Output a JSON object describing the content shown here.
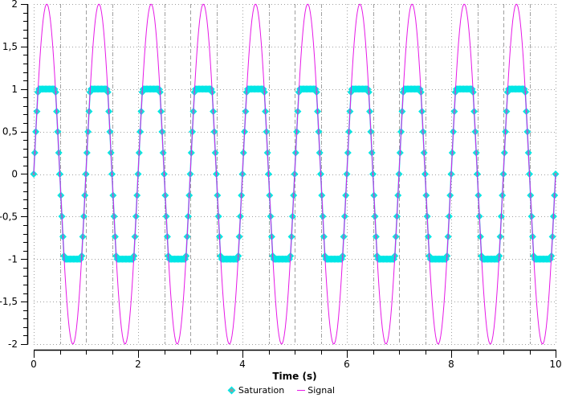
{
  "chart_data": {
    "type": "line",
    "title": "",
    "xlabel": "Time (s)",
    "ylabel": "",
    "xlim": [
      0,
      10
    ],
    "ylim": [
      -2,
      2
    ],
    "grid": true,
    "legend_position": "bottom",
    "x_ticks": [
      0,
      2,
      4,
      6,
      8,
      10
    ],
    "x_tick_labels": [
      "0",
      "2",
      "4",
      "6",
      "8",
      "10"
    ],
    "y_ticks": [
      -2,
      -1.5,
      -1,
      -0.5,
      0,
      0.5,
      1,
      1.5,
      2
    ],
    "y_tick_labels": [
      "-2",
      "-1,5",
      "-1",
      "-0,5",
      "0",
      "0,5",
      "1",
      "1,5",
      "2"
    ],
    "series": [
      {
        "name": "Saturation",
        "color": "#00e6e6",
        "marker": "diamond",
        "marker_color": "#00e6e6",
        "description": "Signal clipped to [-1, 1]",
        "formula": "clip(2*sin(2*pi*t), -1, 1)",
        "lower_limit": -1,
        "upper_limit": 1
      },
      {
        "name": "Signal",
        "color": "#e619e6",
        "marker": "none",
        "formula": "2*sin(2*pi*t)",
        "amplitude": 2,
        "frequency_hz": 1
      }
    ],
    "sample_step": 0.02
  },
  "legend": {
    "items": [
      {
        "label": "Saturation",
        "color": "#00e6e6"
      },
      {
        "label": "Signal",
        "color": "#e619e6"
      }
    ]
  }
}
